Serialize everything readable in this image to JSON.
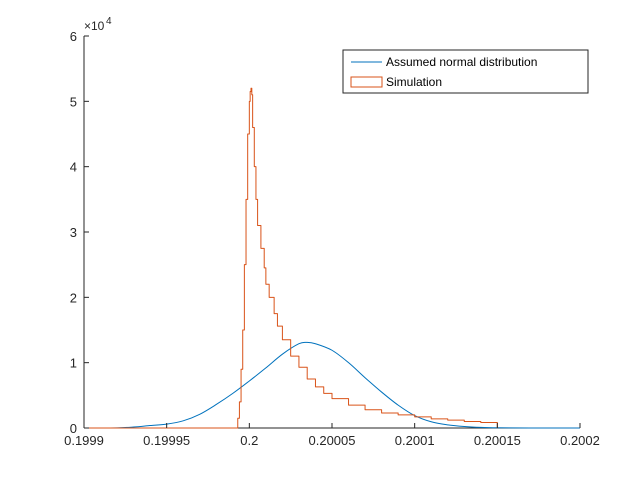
{
  "chart_data": {
    "type": "line",
    "title": "",
    "xlabel": "",
    "ylabel": "",
    "xlim": [
      0.1999,
      0.2002
    ],
    "ylim": [
      0,
      60000
    ],
    "x_ticks": [
      "0.1999",
      "0.19995",
      "0.2",
      "0.20005",
      "0.2001",
      "0.20015",
      "0.2002"
    ],
    "y_ticks": [
      "0",
      "1",
      "2",
      "3",
      "4",
      "5",
      "6"
    ],
    "y_exponent": {
      "base": "×10",
      "power": "4"
    },
    "grid": false,
    "legend_position": "top-right",
    "series": [
      {
        "name": "Assumed normal distribution",
        "color": "#0072BD",
        "style": "smooth",
        "points": [
          [
            0.1999,
            0
          ],
          [
            0.19992,
            20
          ],
          [
            0.19993,
            150
          ],
          [
            0.19994,
            380
          ],
          [
            0.19995,
            600
          ],
          [
            0.19996,
            1100
          ],
          [
            0.19997,
            2100
          ],
          [
            0.19998,
            3600
          ],
          [
            0.19999,
            5300
          ],
          [
            0.2,
            7200
          ],
          [
            0.20001,
            9200
          ],
          [
            0.20002,
            11300
          ],
          [
            0.20003,
            12900
          ],
          [
            0.200035,
            13100
          ],
          [
            0.20004,
            12900
          ],
          [
            0.20005,
            11900
          ],
          [
            0.20006,
            10000
          ],
          [
            0.20007,
            7700
          ],
          [
            0.20008,
            5500
          ],
          [
            0.20009,
            3500
          ],
          [
            0.2001,
            1900
          ],
          [
            0.20011,
            950
          ],
          [
            0.20012,
            480
          ],
          [
            0.20013,
            230
          ],
          [
            0.20014,
            90
          ],
          [
            0.20015,
            30
          ],
          [
            0.20017,
            5
          ],
          [
            0.2002,
            0
          ]
        ]
      },
      {
        "name": "Simulation",
        "color": "#D95319",
        "style": "stairs",
        "points": [
          [
            0.1999,
            0
          ],
          [
            0.199992,
            0
          ],
          [
            0.199993,
            1500
          ],
          [
            0.199994,
            4000
          ],
          [
            0.199995,
            9000
          ],
          [
            0.199996,
            15000
          ],
          [
            0.199997,
            25000
          ],
          [
            0.199998,
            35000
          ],
          [
            0.199999,
            45000
          ],
          [
            0.2,
            50000
          ],
          [
            0.2000005,
            51500
          ],
          [
            0.200001,
            52000
          ],
          [
            0.2000015,
            51000
          ],
          [
            0.200002,
            46000
          ],
          [
            0.200003,
            40000
          ],
          [
            0.200004,
            35000
          ],
          [
            0.200005,
            31000
          ],
          [
            0.200007,
            27500
          ],
          [
            0.200009,
            24500
          ],
          [
            0.20001,
            22000
          ],
          [
            0.200012,
            20000
          ],
          [
            0.200015,
            17500
          ],
          [
            0.200017,
            15600
          ],
          [
            0.20002,
            13500
          ],
          [
            0.200025,
            11000
          ],
          [
            0.20003,
            9300
          ],
          [
            0.200035,
            7500
          ],
          [
            0.20004,
            6300
          ],
          [
            0.200045,
            5300
          ],
          [
            0.20005,
            4500
          ],
          [
            0.20006,
            3500
          ],
          [
            0.20007,
            2800
          ],
          [
            0.20008,
            2300
          ],
          [
            0.20009,
            2000
          ],
          [
            0.2001,
            1700
          ],
          [
            0.20011,
            1400
          ],
          [
            0.20012,
            1200
          ],
          [
            0.20013,
            1000
          ],
          [
            0.20014,
            850
          ],
          [
            0.20015,
            700
          ],
          [
            0.20015,
            0
          ]
        ]
      }
    ]
  }
}
